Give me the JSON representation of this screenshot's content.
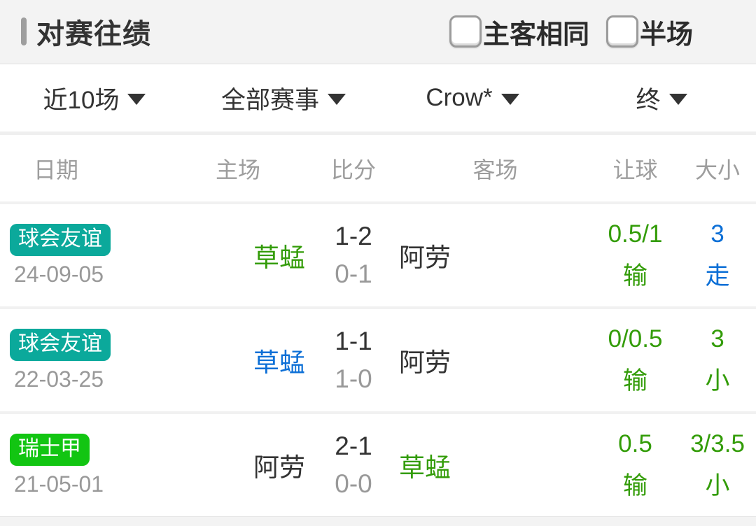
{
  "colors": {
    "teal": "#0ba99b",
    "bright_green": "#12c512",
    "green": "#339c08",
    "blue": "#0c6fd6",
    "dark": "#333333",
    "gray": "#999999"
  },
  "header": {
    "title": "对赛往绩",
    "checkboxes": [
      {
        "label": "主客相同",
        "checked": false
      },
      {
        "label": "半场",
        "checked": false
      }
    ]
  },
  "filters": [
    {
      "label": "近10场"
    },
    {
      "label": "全部赛事"
    },
    {
      "label": "Crow*"
    },
    {
      "label": "终"
    }
  ],
  "table": {
    "columns": {
      "date": "日期",
      "home": "主场",
      "score": "比分",
      "away": "客场",
      "handicap": "让球",
      "overunder": "大小"
    },
    "rows": [
      {
        "league": "球会友谊",
        "league_color": "teal",
        "date": "24-09-05",
        "home": "草蜢",
        "home_color": "green",
        "score_full": "1-2",
        "score_half": "0-1",
        "away": "阿劳",
        "away_color": "dark",
        "handicap_line": "0.5/1",
        "handicap_result": "输",
        "handicap_color": "green",
        "ou_line": "3",
        "ou_result": "走",
        "ou_color": "blue"
      },
      {
        "league": "球会友谊",
        "league_color": "teal",
        "date": "22-03-25",
        "home": "草蜢",
        "home_color": "blue",
        "score_full": "1-1",
        "score_half": "1-0",
        "away": "阿劳",
        "away_color": "dark",
        "handicap_line": "0/0.5",
        "handicap_result": "输",
        "handicap_color": "green",
        "ou_line": "3",
        "ou_result": "小",
        "ou_color": "green"
      },
      {
        "league": "瑞士甲",
        "league_color": "bright_green",
        "date": "21-05-01",
        "home": "阿劳",
        "home_color": "dark",
        "score_full": "2-1",
        "score_half": "0-0",
        "away": "草蜢",
        "away_color": "green",
        "handicap_line": "0.5",
        "handicap_result": "输",
        "handicap_color": "green",
        "ou_line": "3/3.5",
        "ou_result": "小",
        "ou_color": "green"
      }
    ]
  }
}
